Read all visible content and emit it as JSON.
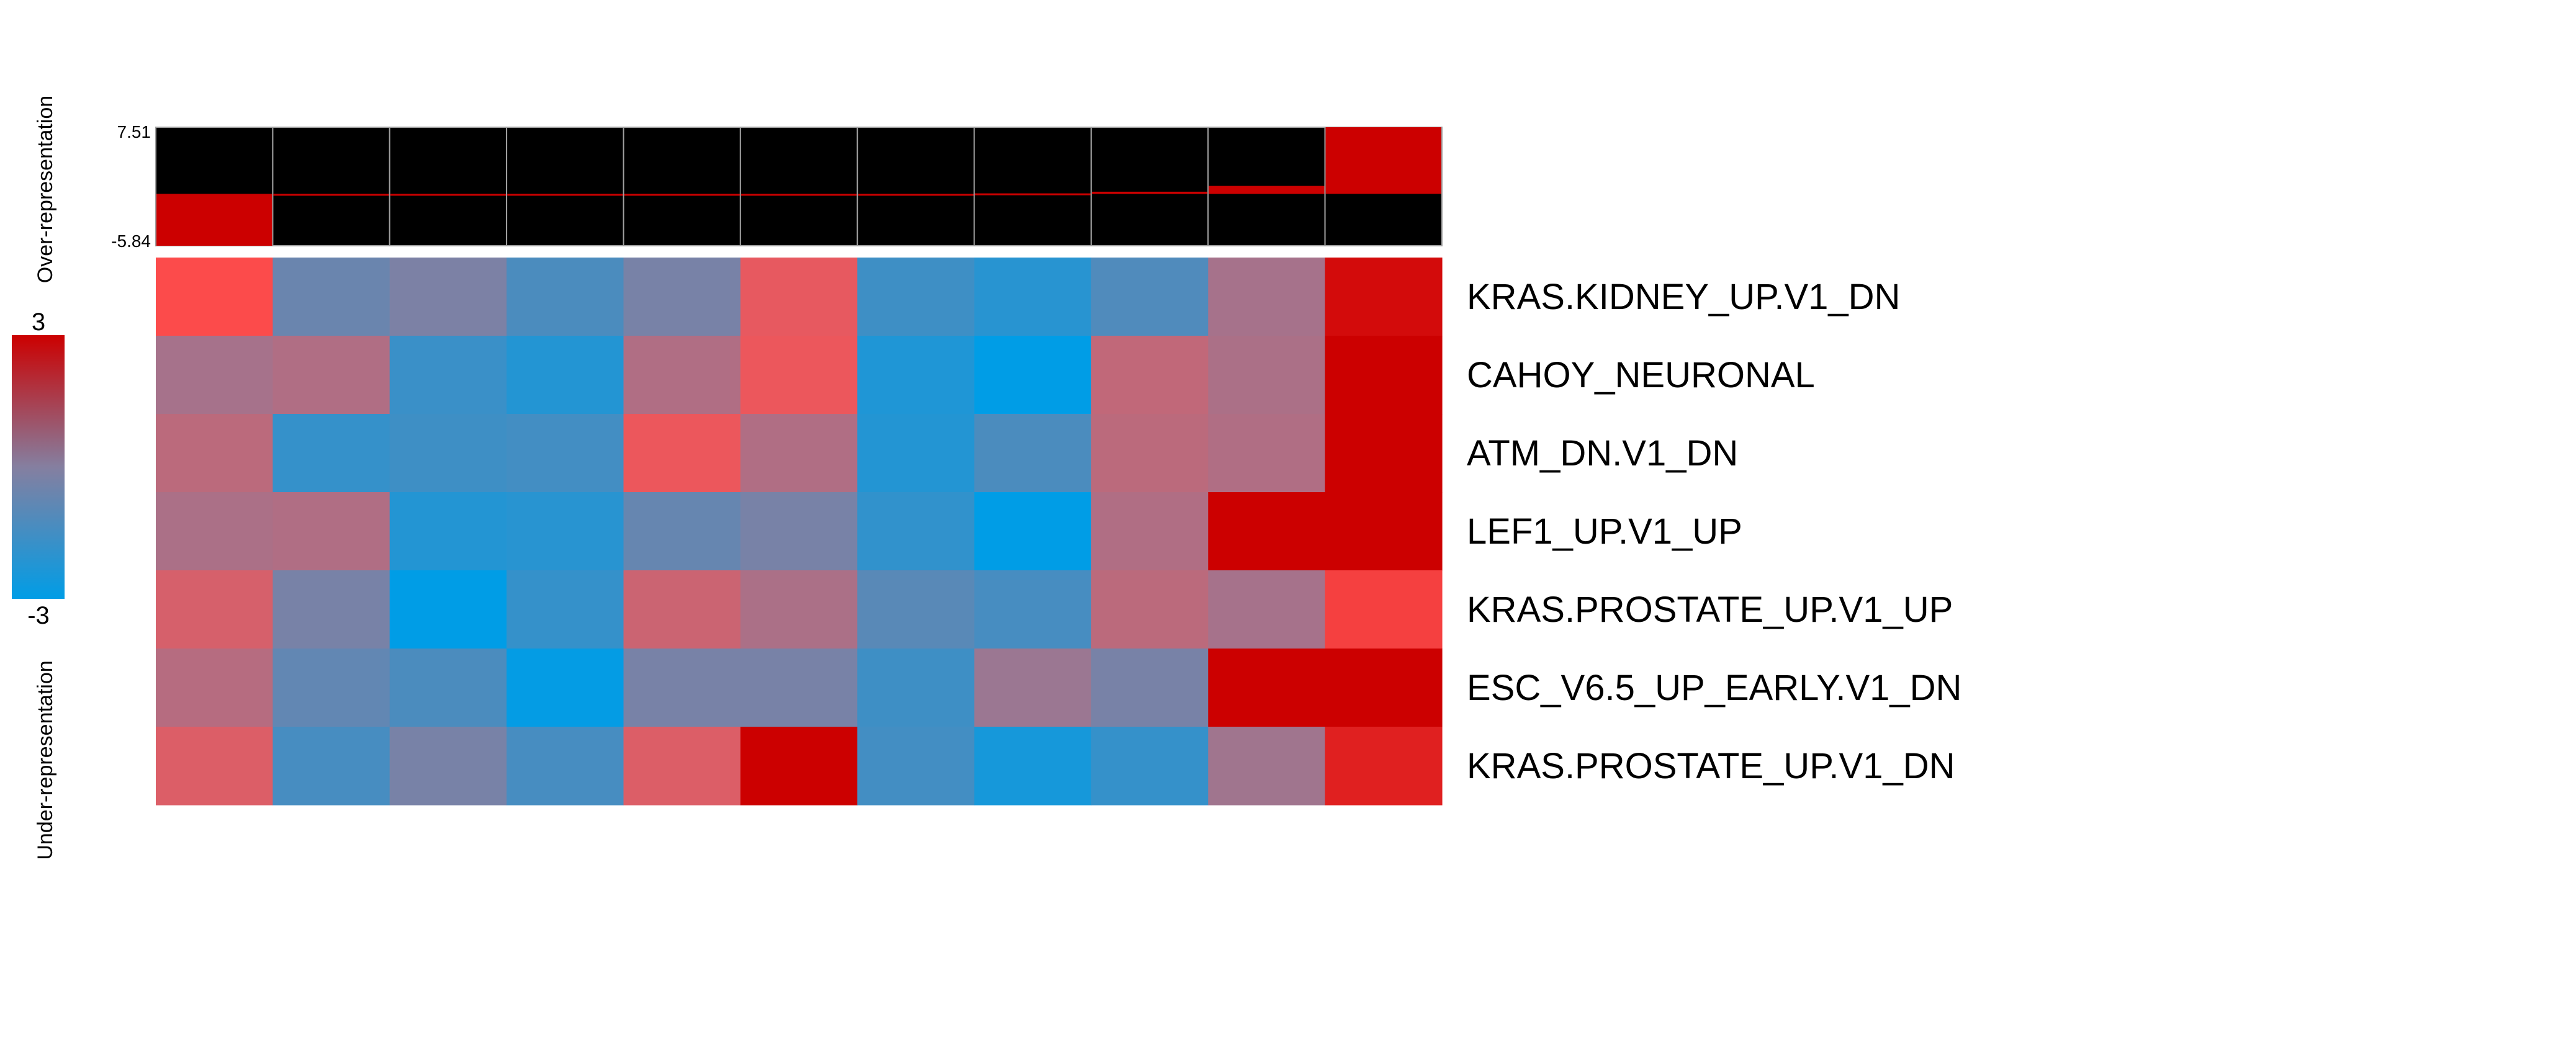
{
  "chart_data": {
    "type": "heatmap",
    "title": "",
    "xlabel": "",
    "ylabel": "",
    "rows": [
      "KRAS.KIDNEY_UP.V1_DN",
      "CAHOY_NEURONAL",
      "ATM_DN.V1_DN",
      "LEF1_UP.V1_UP",
      "KRAS.PROSTATE_UP.V1_UP",
      "ESC_V6.5_UP_EARLY.V1_DN",
      "KRAS.PROSTATE_UP.V1_DN"
    ],
    "columns": [
      "",
      "",
      "",
      "",
      "",
      "",
      "",
      "",
      "",
      "",
      ""
    ],
    "values": [
      [
        2.3,
        -0.6,
        -0.2,
        -1.3,
        -0.3,
        1.8,
        -1.6,
        -2.1,
        -1.2,
        0.6,
        2.9
      ],
      [
        0.6,
        0.8,
        -1.7,
        -2.2,
        0.8,
        1.9,
        -2.3,
        -3.0,
        1.1,
        0.7,
        3.0
      ],
      [
        1.0,
        -1.8,
        -1.6,
        -1.5,
        1.9,
        0.8,
        -2.2,
        -1.3,
        1.0,
        0.8,
        3.0
      ],
      [
        0.7,
        0.8,
        -2.2,
        -2.1,
        -0.7,
        -0.3,
        -1.9,
        -3.0,
        0.8,
        3.0,
        3.0
      ],
      [
        1.5,
        -0.3,
        -3.0,
        -1.8,
        1.3,
        0.7,
        -1.0,
        -1.4,
        1.0,
        0.6,
        2.4
      ],
      [
        0.9,
        -0.8,
        -1.3,
        -2.9,
        -0.3,
        -0.3,
        -1.6,
        0.4,
        -0.3,
        3.0,
        3.0
      ],
      [
        1.6,
        -1.4,
        -0.3,
        -1.4,
        1.6,
        3.0,
        -1.5,
        -2.5,
        -1.8,
        0.5,
        2.7
      ]
    ],
    "color_scale": {
      "min": -3,
      "max": 3,
      "min_label": "-3",
      "max_label": "3",
      "low_color": "#009de6",
      "mid_color": "#857fa0",
      "high_color": "#cc0000"
    },
    "top_bar": {
      "ymax_label": "7.51",
      "ymin_label": "-5.84",
      "ymin": -5.84,
      "ymax": 7.51,
      "values": [
        -5.84,
        -0.18,
        -0.12,
        -0.08,
        -0.05,
        -0.02,
        0.0,
        0.06,
        0.25,
        0.9,
        7.51
      ],
      "background_color": "#000000",
      "bar_color": "#cc0000"
    },
    "side_labels": {
      "over": "Over-representation",
      "under": "Under-representation"
    }
  }
}
